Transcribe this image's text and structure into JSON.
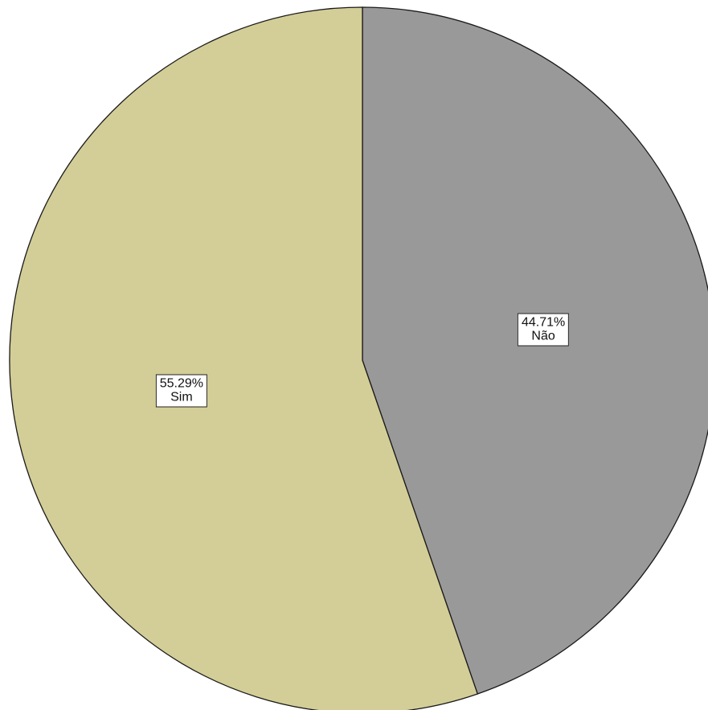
{
  "chart_data": {
    "type": "pie",
    "categories": [
      "Não",
      "Sim"
    ],
    "values": [
      44.71,
      55.29
    ],
    "value_labels": [
      "44.71%",
      "55.29%"
    ],
    "colors": [
      "#999999",
      "#d3ce97"
    ],
    "start_angle_deg": 0,
    "direction": "clockwise",
    "legend": "none",
    "labels_inside": true
  }
}
